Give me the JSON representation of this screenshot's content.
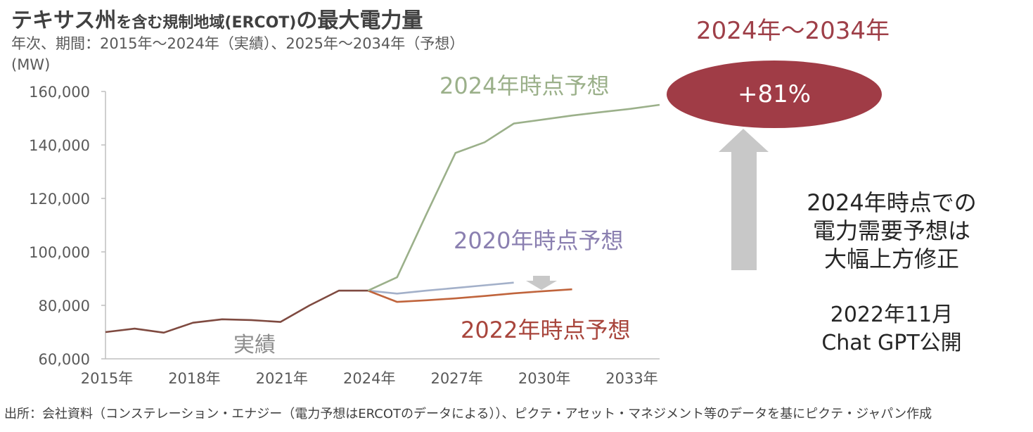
{
  "title": {
    "main_a": "テキサス州",
    "main_b": "を含む規制地域(ERCOT)",
    "main_c": "の最大電力量"
  },
  "subtitle": "年次、期間：2015年～2024年（実績）、2025年～2034年（予想）",
  "unit": "(MW)",
  "source": "出所：会社資料（コンステレーション・エナジー（電力予想はERCOTのデータによる））、ピクテ・アセット・マネジメント等のデータを基にピクテ・ジャパン作成",
  "annotations": {
    "period": "2024年～2034年",
    "increase": "+81%",
    "note_lines": [
      "2024年時点での",
      "電力需要予想は",
      "大幅上方修正"
    ],
    "event_lines": [
      "2022年11月",
      "Chat GPT公開"
    ]
  },
  "colors": {
    "actual": "#7f4a40",
    "forecast_2024": "#9bb08a",
    "forecast_2020": "#a3b0c9",
    "forecast_2022": "#c0643c",
    "accent": "#a03c46",
    "arrow": "#c8c8c8"
  },
  "chart_data": {
    "type": "line",
    "title": "テキサス州を含む規制地域(ERCOT)の最大電力量",
    "ylabel": "(MW)",
    "ylim": [
      60000,
      160000
    ],
    "yticks": [
      "60,000",
      "80,000",
      "100,000",
      "120,000",
      "140,000",
      "160,000"
    ],
    "xlim": [
      2015,
      2034
    ],
    "xticks": [
      "2015年",
      "2018年",
      "2021年",
      "2024年",
      "2027年",
      "2030年",
      "2033年"
    ],
    "grid": false,
    "series": [
      {
        "name": "実績",
        "x": [
          2015,
          2016,
          2017,
          2018,
          2019,
          2020,
          2021,
          2022,
          2023,
          2024
        ],
        "y": [
          70000,
          71300,
          69800,
          73500,
          74800,
          74500,
          73800,
          80000,
          85500,
          85500
        ]
      },
      {
        "name": "2024年時点予想",
        "x": [
          2024,
          2025,
          2026,
          2027,
          2028,
          2029,
          2030,
          2031,
          2032,
          2033,
          2034
        ],
        "y": [
          85500,
          90500,
          114000,
          137000,
          141000,
          148000,
          149500,
          151000,
          152300,
          153500,
          155000
        ]
      },
      {
        "name": "2020年時点予想",
        "x": [
          2024,
          2025,
          2026,
          2027,
          2028,
          2029
        ],
        "y": [
          85500,
          84400,
          85500,
          86500,
          87500,
          88500
        ]
      },
      {
        "name": "2022年時点予想",
        "x": [
          2024,
          2025,
          2026,
          2027,
          2028,
          2029,
          2030,
          2031
        ],
        "y": [
          85500,
          81300,
          81900,
          82600,
          83500,
          84500,
          85300,
          86000
        ]
      }
    ]
  }
}
